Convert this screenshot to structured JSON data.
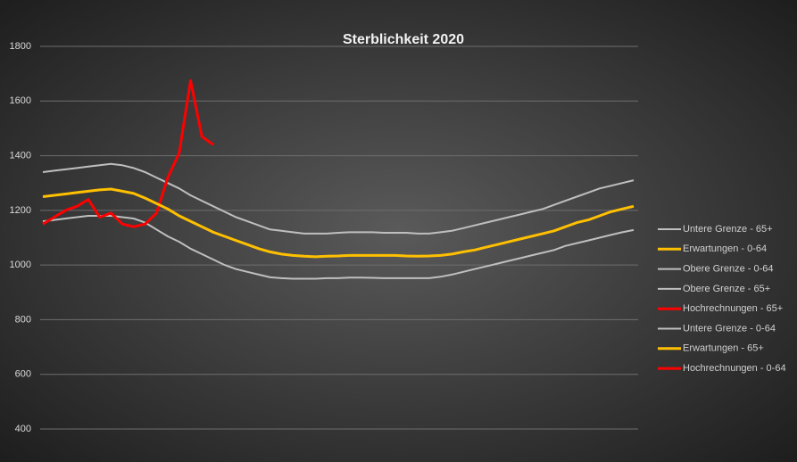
{
  "chart_data": {
    "type": "line",
    "title": "Sterblichkeit  2020",
    "ylim": [
      400,
      1800
    ],
    "yticks": [
      400,
      600,
      800,
      1000,
      1200,
      1400,
      1600,
      1800
    ],
    "grid": true,
    "legend": "right",
    "series": [
      {
        "name": "Untere Grenze - 65+",
        "color": "#bfbfbf",
        "values": [
          1160,
          1165,
          1170,
          1175,
          1180,
          1180,
          1180,
          1175,
          1170,
          1155,
          1130,
          1105,
          1085,
          1060,
          1040,
          1020,
          1000,
          985,
          975,
          965,
          955,
          952,
          950,
          950,
          950,
          952,
          952,
          954,
          954,
          953,
          952,
          952,
          952,
          952,
          952,
          957,
          965,
          975,
          985,
          995,
          1005,
          1015,
          1025,
          1035,
          1045,
          1055,
          1070,
          1080,
          1090,
          1100,
          1110,
          1120,
          1128
        ]
      },
      {
        "name": "Erwartungen - 0-64",
        "color": "#ffc000",
        "values": [
          null,
          null,
          null,
          null,
          null,
          null,
          null,
          null,
          null,
          null,
          null,
          null,
          null,
          null,
          null,
          null,
          null,
          null,
          null,
          null,
          null,
          null,
          null,
          null,
          null,
          null,
          null,
          null,
          null,
          null,
          null,
          null,
          null,
          null,
          null,
          null,
          null,
          null,
          null,
          null,
          null,
          null,
          null,
          null,
          null,
          null,
          null,
          null,
          null,
          null,
          null,
          null,
          null
        ]
      },
      {
        "name": "Obere Grenze - 0-64",
        "color": "#bfbfbf",
        "values": [
          null,
          null,
          null,
          null,
          null,
          null,
          null,
          null,
          null,
          null,
          null,
          null,
          null,
          null,
          null,
          null,
          null,
          null,
          null,
          null,
          null,
          null,
          null,
          null,
          null,
          null,
          null,
          null,
          null,
          null,
          null,
          null,
          null,
          null,
          null,
          null,
          null,
          null,
          null,
          null,
          null,
          null,
          null,
          null,
          null,
          null,
          null,
          null,
          null,
          null,
          null,
          null,
          null
        ]
      },
      {
        "name": "Obere Grenze - 65+",
        "color": "#bfbfbf",
        "values": [
          1340,
          1345,
          1350,
          1355,
          1360,
          1365,
          1370,
          1365,
          1355,
          1340,
          1320,
          1300,
          1280,
          1255,
          1235,
          1215,
          1195,
          1175,
          1160,
          1145,
          1130,
          1125,
          1120,
          1115,
          1115,
          1115,
          1118,
          1120,
          1120,
          1120,
          1118,
          1118,
          1118,
          1115,
          1115,
          1120,
          1125,
          1135,
          1145,
          1155,
          1165,
          1175,
          1185,
          1195,
          1205,
          1220,
          1235,
          1250,
          1265,
          1280,
          1290,
          1300,
          1310
        ]
      },
      {
        "name": "Hochrechnungen - 65+",
        "color": "#ff0000",
        "values": [
          1150,
          1175,
          1200,
          1215,
          1240,
          1175,
          1190,
          1150,
          1140,
          1150,
          1190,
          1320,
          1410,
          1675,
          1470,
          1440,
          null,
          null,
          null,
          null,
          null,
          null,
          null,
          null,
          null,
          null,
          null,
          null,
          null,
          null,
          null,
          null,
          null,
          null,
          null,
          null,
          null,
          null,
          null,
          null,
          null,
          null,
          null,
          null,
          null,
          null,
          null,
          null,
          null,
          null,
          null,
          null,
          null
        ]
      },
      {
        "name": "Untere Grenze - 0-64",
        "color": "#bfbfbf",
        "values": [
          null,
          null,
          null,
          null,
          null,
          null,
          null,
          null,
          null,
          null,
          null,
          null,
          null,
          null,
          null,
          null,
          null,
          null,
          null,
          null,
          null,
          null,
          null,
          null,
          null,
          null,
          null,
          null,
          null,
          null,
          null,
          null,
          null,
          null,
          null,
          null,
          null,
          null,
          null,
          null,
          null,
          null,
          null,
          null,
          null,
          null,
          null,
          null,
          null,
          null,
          null,
          null,
          null
        ]
      },
      {
        "name": "Erwartungen - 65+",
        "color": "#ffc000",
        "values": [
          1250,
          1255,
          1260,
          1265,
          1270,
          1275,
          1278,
          1270,
          1262,
          1245,
          1225,
          1205,
          1180,
          1160,
          1140,
          1120,
          1105,
          1090,
          1075,
          1060,
          1048,
          1040,
          1035,
          1032,
          1030,
          1032,
          1033,
          1035,
          1035,
          1035,
          1035,
          1035,
          1033,
          1032,
          1033,
          1035,
          1040,
          1048,
          1055,
          1065,
          1075,
          1085,
          1095,
          1105,
          1115,
          1125,
          1140,
          1155,
          1165,
          1180,
          1195,
          1205,
          1215
        ]
      },
      {
        "name": "Hochrechnungen - 0-64",
        "color": "#ff0000",
        "values": [
          null,
          null,
          null,
          null,
          null,
          null,
          null,
          null,
          null,
          null,
          null,
          null,
          null,
          null,
          null,
          null,
          null,
          null,
          null,
          null,
          null,
          null,
          null,
          null,
          null,
          null,
          null,
          null,
          null,
          null,
          null,
          null,
          null,
          null,
          null,
          null,
          null,
          null,
          null,
          null,
          null,
          null,
          null,
          null,
          null,
          null,
          null,
          null,
          null,
          null,
          null,
          null,
          null
        ]
      }
    ]
  }
}
